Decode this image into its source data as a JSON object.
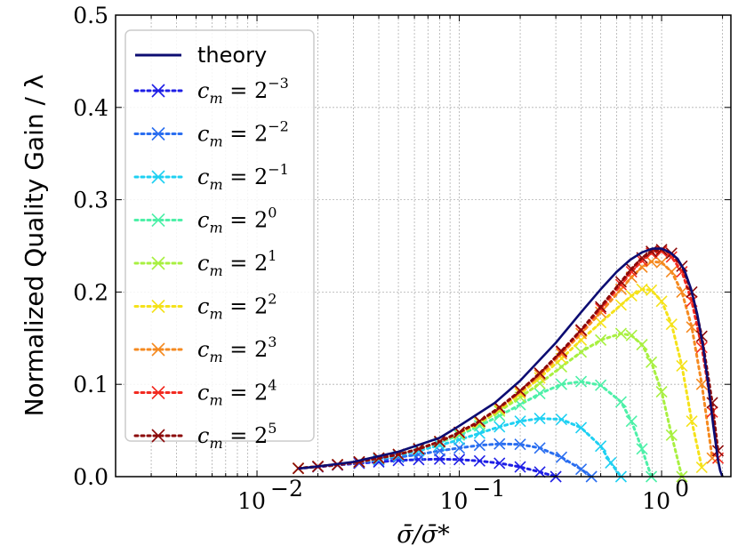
{
  "chart_data": {
    "type": "line",
    "title": "",
    "xlabel": "σ̄/σ̄*",
    "ylabel": "Normalized Quality Gain / λ",
    "xscale": "log",
    "xlim": [
      0.002,
      2.2
    ],
    "ylim": [
      0.0,
      0.5
    ],
    "x_ticks": [
      {
        "value": 0.01,
        "label": "10",
        "exp": "−2"
      },
      {
        "value": 0.1,
        "label": "10",
        "exp": "−1"
      },
      {
        "value": 1,
        "label": "10",
        "exp": "0"
      }
    ],
    "y_ticks": [
      {
        "value": 0.0,
        "label": "0.0"
      },
      {
        "value": 0.1,
        "label": "0.1"
      },
      {
        "value": 0.2,
        "label": "0.2"
      },
      {
        "value": 0.3,
        "label": "0.3"
      },
      {
        "value": 0.4,
        "label": "0.4"
      },
      {
        "value": 0.5,
        "label": "0.5"
      }
    ],
    "grid": true,
    "legend_position": "top-left",
    "theory": {
      "name": "theory",
      "color": "#0c0c72",
      "x": [
        0.016,
        0.02,
        0.03,
        0.05,
        0.08,
        0.1,
        0.15,
        0.2,
        0.3,
        0.4,
        0.5,
        0.6,
        0.7,
        0.8,
        0.9,
        1.0,
        1.1,
        1.2,
        1.3,
        1.4,
        1.5,
        1.6,
        1.7,
        1.8,
        1.9,
        1.95,
        2.0
      ],
      "y": [
        0.0088,
        0.011,
        0.016,
        0.027,
        0.042,
        0.055,
        0.08,
        0.104,
        0.145,
        0.178,
        0.203,
        0.222,
        0.235,
        0.243,
        0.247,
        0.247,
        0.243,
        0.236,
        0.223,
        0.203,
        0.176,
        0.142,
        0.1,
        0.055,
        0.018,
        0.006,
        0.0
      ]
    },
    "series": [
      {
        "name": "c_m = 2^{-3}",
        "base": "2",
        "exp": "−3",
        "color": "#1e1ee6",
        "x": [
          0.016,
          0.02,
          0.025,
          0.032,
          0.04,
          0.05,
          0.063,
          0.08,
          0.1,
          0.126,
          0.158,
          0.2,
          0.25,
          0.3
        ],
        "y": [
          0.009,
          0.0105,
          0.0125,
          0.0145,
          0.016,
          0.0175,
          0.0185,
          0.019,
          0.0185,
          0.017,
          0.0145,
          0.0105,
          0.005,
          0.0
        ]
      },
      {
        "name": "c_m = 2^{-2}",
        "base": "2",
        "exp": "−2",
        "color": "#2a6ef0",
        "x": [
          0.016,
          0.02,
          0.025,
          0.032,
          0.04,
          0.05,
          0.063,
          0.08,
          0.1,
          0.126,
          0.158,
          0.2,
          0.25,
          0.32,
          0.4,
          0.45
        ],
        "y": [
          0.009,
          0.011,
          0.013,
          0.0155,
          0.018,
          0.021,
          0.024,
          0.028,
          0.031,
          0.034,
          0.0355,
          0.035,
          0.031,
          0.021,
          0.008,
          0.0
        ]
      },
      {
        "name": "c_m = 2^{-1}",
        "base": "2",
        "exp": "−1",
        "color": "#1ed0f2",
        "x": [
          0.016,
          0.02,
          0.025,
          0.032,
          0.04,
          0.05,
          0.063,
          0.08,
          0.1,
          0.126,
          0.158,
          0.2,
          0.25,
          0.32,
          0.4,
          0.5,
          0.56,
          0.63
        ],
        "y": [
          0.009,
          0.011,
          0.013,
          0.016,
          0.019,
          0.023,
          0.028,
          0.034,
          0.04,
          0.047,
          0.054,
          0.06,
          0.063,
          0.062,
          0.053,
          0.033,
          0.015,
          0.0
        ]
      },
      {
        "name": "c_m = 2^{0}",
        "base": "2",
        "exp": "0",
        "color": "#4df0a8",
        "x": [
          0.016,
          0.02,
          0.025,
          0.032,
          0.04,
          0.05,
          0.063,
          0.08,
          0.1,
          0.126,
          0.158,
          0.2,
          0.25,
          0.32,
          0.4,
          0.5,
          0.63,
          0.71,
          0.8,
          0.89
        ],
        "y": [
          0.009,
          0.011,
          0.013,
          0.016,
          0.02,
          0.024,
          0.03,
          0.037,
          0.045,
          0.055,
          0.066,
          0.078,
          0.09,
          0.1,
          0.103,
          0.099,
          0.081,
          0.06,
          0.03,
          0.0
        ]
      },
      {
        "name": "c_m = 2^{1}",
        "base": "2",
        "exp": "1",
        "color": "#a8f040",
        "x": [
          0.016,
          0.02,
          0.025,
          0.032,
          0.04,
          0.05,
          0.063,
          0.08,
          0.1,
          0.126,
          0.158,
          0.2,
          0.25,
          0.32,
          0.4,
          0.5,
          0.63,
          0.71,
          0.8,
          0.89,
          1.0,
          1.12,
          1.26
        ],
        "y": [
          0.009,
          0.011,
          0.013,
          0.016,
          0.02,
          0.024,
          0.03,
          0.038,
          0.047,
          0.058,
          0.071,
          0.086,
          0.101,
          0.119,
          0.135,
          0.148,
          0.155,
          0.153,
          0.143,
          0.124,
          0.092,
          0.045,
          0.0
        ]
      },
      {
        "name": "c_m = 2^{2}",
        "base": "2",
        "exp": "2",
        "color": "#f5e21a",
        "x": [
          0.016,
          0.02,
          0.025,
          0.032,
          0.04,
          0.05,
          0.063,
          0.08,
          0.1,
          0.126,
          0.158,
          0.2,
          0.25,
          0.32,
          0.4,
          0.5,
          0.63,
          0.71,
          0.8,
          0.89,
          1.0,
          1.12,
          1.26,
          1.41,
          1.58
        ],
        "y": [
          0.009,
          0.011,
          0.013,
          0.016,
          0.02,
          0.024,
          0.03,
          0.038,
          0.047,
          0.059,
          0.073,
          0.09,
          0.107,
          0.128,
          0.148,
          0.167,
          0.186,
          0.196,
          0.203,
          0.202,
          0.19,
          0.165,
          0.12,
          0.06,
          0.01
        ]
      },
      {
        "name": "c_m = 2^{3}",
        "base": "2",
        "exp": "3",
        "color": "#f58a20",
        "x": [
          0.016,
          0.02,
          0.025,
          0.032,
          0.04,
          0.05,
          0.063,
          0.08,
          0.1,
          0.126,
          0.158,
          0.2,
          0.25,
          0.32,
          0.4,
          0.5,
          0.63,
          0.71,
          0.8,
          0.89,
          1.0,
          1.12,
          1.26,
          1.41,
          1.58,
          1.78
        ],
        "y": [
          0.009,
          0.011,
          0.013,
          0.016,
          0.02,
          0.024,
          0.03,
          0.038,
          0.048,
          0.06,
          0.074,
          0.092,
          0.11,
          0.133,
          0.155,
          0.178,
          0.203,
          0.216,
          0.227,
          0.233,
          0.232,
          0.222,
          0.2,
          0.162,
          0.1,
          0.02
        ]
      },
      {
        "name": "c_m = 2^{4}",
        "base": "2",
        "exp": "4",
        "color": "#f22a20",
        "x": [
          0.016,
          0.02,
          0.025,
          0.032,
          0.04,
          0.05,
          0.063,
          0.08,
          0.1,
          0.126,
          0.158,
          0.2,
          0.25,
          0.32,
          0.4,
          0.5,
          0.63,
          0.71,
          0.8,
          0.89,
          1.0,
          1.12,
          1.26,
          1.41,
          1.58,
          1.78,
          1.9
        ],
        "y": [
          0.009,
          0.011,
          0.013,
          0.016,
          0.02,
          0.024,
          0.03,
          0.038,
          0.048,
          0.06,
          0.075,
          0.093,
          0.112,
          0.135,
          0.158,
          0.182,
          0.208,
          0.222,
          0.234,
          0.242,
          0.244,
          0.238,
          0.222,
          0.19,
          0.14,
          0.07,
          0.02
        ]
      },
      {
        "name": "c_m = 2^{5}",
        "base": "2",
        "exp": "5",
        "color": "#8c0a0a",
        "x": [
          0.016,
          0.02,
          0.025,
          0.032,
          0.04,
          0.05,
          0.063,
          0.08,
          0.1,
          0.126,
          0.158,
          0.2,
          0.25,
          0.32,
          0.4,
          0.5,
          0.63,
          0.71,
          0.8,
          0.89,
          1.0,
          1.12,
          1.26,
          1.41,
          1.58,
          1.78,
          1.9
        ],
        "y": [
          0.009,
          0.011,
          0.013,
          0.016,
          0.02,
          0.024,
          0.03,
          0.038,
          0.048,
          0.06,
          0.075,
          0.093,
          0.112,
          0.136,
          0.159,
          0.184,
          0.211,
          0.225,
          0.237,
          0.244,
          0.246,
          0.242,
          0.228,
          0.2,
          0.152,
          0.08,
          0.028
        ]
      }
    ]
  }
}
